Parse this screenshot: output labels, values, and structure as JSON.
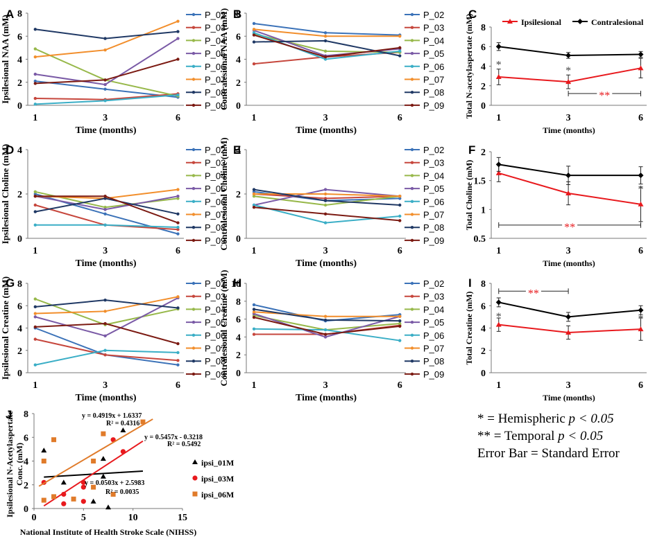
{
  "colors": {
    "P_02": "#3b72b8",
    "P_03": "#c6463c",
    "P_04": "#97b84a",
    "P_05": "#7a5aa6",
    "P_06": "#3aaec6",
    "P_07": "#f28e2b",
    "P_08": "#1f3864",
    "P_09": "#7b1a12",
    "Ipsilesional": "#e8191d",
    "Contralesional": "#000000",
    "ipsi_01M": "#000000",
    "ipsi_03M": "#e8191d",
    "ipsi_06M": "#e07b2a"
  },
  "key": {
    "hemispheric_symbol": "*",
    "hemispheric_text": " = Hemispheric ",
    "hemispheric_p": "p < 0.05",
    "temporal_symbol": "**",
    "temporal_text": " = Temporal ",
    "temporal_p": "p < 0.05",
    "error_bar": "Error Bar = Standard Error"
  },
  "chart_data": [
    {
      "panel": "A",
      "type": "line",
      "xlabel": "Time (months)",
      "ylabel": "Ipsilesional NAA (mM)",
      "x": [
        1,
        3,
        6
      ],
      "xticks": [
        "1",
        "3",
        "6"
      ],
      "ylim": [
        0,
        8
      ],
      "yticks": [
        0,
        2,
        4,
        6,
        8
      ],
      "series": [
        {
          "name": "P_02",
          "values": [
            2.1,
            1.4,
            0.7
          ]
        },
        {
          "name": "P_03",
          "values": [
            0.6,
            0.5,
            1.0
          ]
        },
        {
          "name": "P_04",
          "values": [
            4.9,
            2.2,
            0.8
          ]
        },
        {
          "name": "P_05",
          "values": [
            2.7,
            1.8,
            5.8
          ]
        },
        {
          "name": "P_06",
          "values": [
            0.1,
            0.4,
            0.9
          ]
        },
        {
          "name": "P_07",
          "values": [
            4.2,
            4.8,
            7.3
          ]
        },
        {
          "name": "P_08",
          "values": [
            6.6,
            5.8,
            6.4
          ]
        },
        {
          "name": "P_09",
          "values": [
            1.9,
            2.2,
            4.0
          ]
        }
      ]
    },
    {
      "panel": "B",
      "type": "line",
      "xlabel": "Time (months)",
      "ylabel": "Contralesional NAA (mM)",
      "x": [
        1,
        3,
        6
      ],
      "xticks": [
        "1",
        "3",
        "6"
      ],
      "ylim": [
        0,
        8
      ],
      "yticks": [
        0,
        2,
        4,
        6,
        8
      ],
      "series": [
        {
          "name": "P_02",
          "values": [
            7.1,
            6.3,
            6.1
          ]
        },
        {
          "name": "P_03",
          "values": [
            3.6,
            4.2,
            4.6
          ]
        },
        {
          "name": "P_04",
          "values": [
            6.2,
            4.7,
            4.6
          ]
        },
        {
          "name": "P_05",
          "values": [
            6.5,
            4.3,
            4.9
          ]
        },
        {
          "name": "P_06",
          "values": [
            6.3,
            4.0,
            4.7
          ]
        },
        {
          "name": "P_07",
          "values": [
            6.6,
            6.0,
            6.0
          ]
        },
        {
          "name": "P_08",
          "values": [
            5.5,
            5.6,
            4.3
          ]
        },
        {
          "name": "P_09",
          "values": [
            6.1,
            4.2,
            5.0
          ]
        }
      ]
    },
    {
      "panel": "C",
      "type": "line",
      "xlabel": "Time (months)",
      "ylabel": "Total N-acetylaspertate (mM)",
      "x": [
        1,
        3,
        6
      ],
      "xticks": [
        "1",
        "3",
        "6"
      ],
      "ylim": [
        0,
        8
      ],
      "yticks": [
        0,
        2,
        4,
        6,
        8
      ],
      "legend": [
        "Ipsilesional",
        "Contralesional"
      ],
      "series": [
        {
          "name": "Ipsilesional",
          "values": [
            2.9,
            2.4,
            3.8
          ],
          "errors": [
            0.8,
            0.7,
            1.0
          ]
        },
        {
          "name": "Contralesional",
          "values": [
            6.0,
            5.1,
            5.2
          ],
          "errors": [
            0.4,
            0.3,
            0.3
          ]
        }
      ],
      "annotations": [
        {
          "text": "*",
          "x": 1,
          "y": 4.2,
          "color": "#444444"
        },
        {
          "text": "*",
          "x": 3,
          "y": 3.6,
          "color": "#444444"
        }
      ],
      "brackets": [
        {
          "x1": 3,
          "x2": 6,
          "y": 1.2,
          "label": "**"
        }
      ]
    },
    {
      "panel": "D",
      "type": "line",
      "xlabel": "Time (months)",
      "ylabel": "Ipsilesional Choline (mM)",
      "x": [
        1,
        3,
        6
      ],
      "xticks": [
        "1",
        "3",
        "6"
      ],
      "ylim": [
        0,
        4
      ],
      "yticks": [
        0,
        2,
        4
      ],
      "series": [
        {
          "name": "P_02",
          "values": [
            2.0,
            1.1,
            0.2
          ]
        },
        {
          "name": "P_03",
          "values": [
            1.5,
            0.6,
            0.4
          ]
        },
        {
          "name": "P_04",
          "values": [
            2.1,
            1.4,
            1.8
          ]
        },
        {
          "name": "P_05",
          "values": [
            1.9,
            1.3,
            1.9
          ]
        },
        {
          "name": "P_06",
          "values": [
            0.6,
            0.6,
            0.5
          ]
        },
        {
          "name": "P_07",
          "values": [
            1.9,
            1.8,
            2.2
          ]
        },
        {
          "name": "P_08",
          "values": [
            1.2,
            1.8,
            1.1
          ]
        },
        {
          "name": "P_09",
          "values": [
            1.9,
            1.9,
            0.7
          ]
        }
      ]
    },
    {
      "panel": "E",
      "type": "line",
      "xlabel": "Time (months)",
      "ylabel": "Contralesional Choline (mM)",
      "x": [
        1,
        3,
        6
      ],
      "xticks": [
        "1",
        "3",
        "6"
      ],
      "ylim": [
        0,
        4
      ],
      "yticks": [
        0,
        2,
        4
      ],
      "series": [
        {
          "name": "P_02",
          "values": [
            2.1,
            1.7,
            1.8
          ]
        },
        {
          "name": "P_03",
          "values": [
            2.0,
            1.8,
            1.9
          ]
        },
        {
          "name": "P_04",
          "values": [
            1.9,
            1.5,
            1.9
          ]
        },
        {
          "name": "P_05",
          "values": [
            1.5,
            2.2,
            1.9
          ]
        },
        {
          "name": "P_06",
          "values": [
            1.5,
            0.7,
            1.0
          ]
        },
        {
          "name": "P_07",
          "values": [
            2.0,
            2.0,
            1.9
          ]
        },
        {
          "name": "P_08",
          "values": [
            2.2,
            1.7,
            1.5
          ]
        },
        {
          "name": "P_09",
          "values": [
            1.4,
            1.1,
            0.8
          ]
        }
      ]
    },
    {
      "panel": "F",
      "type": "line",
      "xlabel": "Time (months)",
      "ylabel": "Total Choline (mM)",
      "x": [
        1,
        3,
        6
      ],
      "xticks": [
        "1",
        "3",
        "6"
      ],
      "ylim": [
        0.5,
        2
      ],
      "yticks": [
        0.5,
        1,
        1.5,
        2
      ],
      "series": [
        {
          "name": "Ipsilesional",
          "values": [
            1.63,
            1.28,
            1.09
          ],
          "errors": [
            0.15,
            0.2,
            0.3
          ]
        },
        {
          "name": "Contralesional",
          "values": [
            1.78,
            1.59,
            1.59
          ],
          "errors": [
            0.12,
            0.16,
            0.15
          ]
        }
      ],
      "annotations": [
        {
          "text": "*",
          "x": 6,
          "y": 1.36,
          "color": "#444444"
        }
      ],
      "brackets": [
        {
          "x1": 1,
          "x2": 6,
          "y": 0.73,
          "label": "**"
        }
      ]
    },
    {
      "panel": "G",
      "type": "line",
      "xlabel": "Time (months)",
      "ylabel": "Ipsilesional Creatine (mM)",
      "x": [
        1,
        3,
        6
      ],
      "xticks": [
        "1",
        "3",
        "6"
      ],
      "ylim": [
        0,
        8
      ],
      "yticks": [
        0,
        2,
        4,
        6,
        8
      ],
      "series": [
        {
          "name": "P_02",
          "values": [
            4.0,
            1.6,
            0.7
          ]
        },
        {
          "name": "P_03",
          "values": [
            3.0,
            1.6,
            1.1
          ]
        },
        {
          "name": "P_04",
          "values": [
            6.6,
            4.3,
            5.7
          ]
        },
        {
          "name": "P_05",
          "values": [
            5.0,
            3.3,
            6.7
          ]
        },
        {
          "name": "P_06",
          "values": [
            0.7,
            2.0,
            1.8
          ]
        },
        {
          "name": "P_07",
          "values": [
            5.3,
            5.5,
            6.8
          ]
        },
        {
          "name": "P_08",
          "values": [
            5.9,
            6.5,
            5.8
          ]
        },
        {
          "name": "P_09",
          "values": [
            4.1,
            4.4,
            2.6
          ]
        }
      ]
    },
    {
      "panel": "H",
      "type": "line",
      "xlabel": "Time (months)",
      "ylabel": "Contralesional Creatine (mM)",
      "x": [
        1,
        3,
        6
      ],
      "xticks": [
        "1",
        "3",
        "6"
      ],
      "ylim": [
        0,
        10
      ],
      "yticks": [
        0,
        2,
        4,
        6,
        8,
        10
      ],
      "series": [
        {
          "name": "P_02",
          "values": [
            7.6,
            5.8,
            6.5
          ]
        },
        {
          "name": "P_03",
          "values": [
            4.3,
            4.3,
            5.3
          ]
        },
        {
          "name": "P_04",
          "values": [
            6.4,
            4.8,
            5.5
          ]
        },
        {
          "name": "P_05",
          "values": [
            6.6,
            4.0,
            6.3
          ]
        },
        {
          "name": "P_06",
          "values": [
            4.9,
            4.8,
            3.6
          ]
        },
        {
          "name": "P_07",
          "values": [
            6.8,
            6.3,
            6.3
          ]
        },
        {
          "name": "P_08",
          "values": [
            7.1,
            5.9,
            5.8
          ]
        },
        {
          "name": "P_09",
          "values": [
            6.2,
            4.3,
            5.2
          ]
        }
      ]
    },
    {
      "panel": "I",
      "type": "line",
      "xlabel": "Time (months)",
      "ylabel": "Total Creatine (mM)",
      "x": [
        1,
        3,
        6
      ],
      "xticks": [
        "1",
        "3",
        "6"
      ],
      "ylim": [
        0,
        8
      ],
      "yticks": [
        0,
        2,
        4,
        6,
        8
      ],
      "series": [
        {
          "name": "Ipsilesional",
          "values": [
            4.3,
            3.6,
            3.9
          ],
          "errors": [
            0.6,
            0.6,
            1.0
          ]
        },
        {
          "name": "Contralesional",
          "values": [
            6.3,
            5.0,
            5.6
          ],
          "errors": [
            0.4,
            0.4,
            0.4
          ]
        }
      ],
      "annotations": [
        {
          "text": "*",
          "x": 1,
          "y": 5.1,
          "color": "#444444"
        },
        {
          "text": "*",
          "x": 6,
          "y": 4.9,
          "color": "#444444"
        }
      ],
      "brackets": [
        {
          "x1": 1,
          "x2": 3,
          "y": 7.3,
          "label": "**"
        }
      ]
    },
    {
      "panel": "J",
      "type": "scatter",
      "xlabel": "National Institute of Health Stroke Scale (NIHSS)",
      "ylabel": "Ipsilesional N-Acetylaspertate Conc. (mM)",
      "xlim": [
        0,
        15
      ],
      "xticks": [
        0,
        5,
        10,
        15
      ],
      "ylim": [
        0,
        8
      ],
      "yticks": [
        0,
        2,
        4,
        6,
        8
      ],
      "series": [
        {
          "name": "ipsi_01M",
          "marker": "triangle",
          "points": [
            [
              1,
              4.9
            ],
            [
              3,
              2.2
            ],
            [
              6,
              0.6
            ],
            [
              7,
              4.2
            ],
            [
              7,
              2.7
            ],
            [
              7.5,
              0.1
            ],
            [
              9,
              6.6
            ]
          ],
          "fit": {
            "slope": 0.0503,
            "intercept": 2.5983,
            "equation": "y = 0.0503x + 2.5983",
            "r2": "R² = 0.0035"
          }
        },
        {
          "name": "ipsi_03M",
          "marker": "circle",
          "points": [
            [
              1,
              2.2
            ],
            [
              3,
              1.2
            ],
            [
              3,
              0.4
            ],
            [
              5,
              2.2
            ],
            [
              5,
              1.8
            ],
            [
              5,
              0.6
            ],
            [
              8,
              5.8
            ],
            [
              9,
              4.8
            ]
          ],
          "fit": {
            "slope": 0.5457,
            "intercept": -0.3218,
            "equation": "y = 0.5457x - 0.3218",
            "r2": "R² = 0.5492"
          }
        },
        {
          "name": "ipsi_06M",
          "marker": "square",
          "points": [
            [
              1,
              4.0
            ],
            [
              1,
              0.7
            ],
            [
              2,
              5.8
            ],
            [
              2,
              1.0
            ],
            [
              4,
              0.8
            ],
            [
              6,
              4.0
            ],
            [
              6,
              1.8
            ],
            [
              7,
              6.3
            ],
            [
              8,
              1.2
            ],
            [
              11,
              7.3
            ]
          ],
          "fit": {
            "slope": 0.4919,
            "intercept": 1.6337,
            "equation": "y = 0.4919x + 1.6337",
            "r2": "R² = 0.4316"
          }
        }
      ]
    }
  ]
}
